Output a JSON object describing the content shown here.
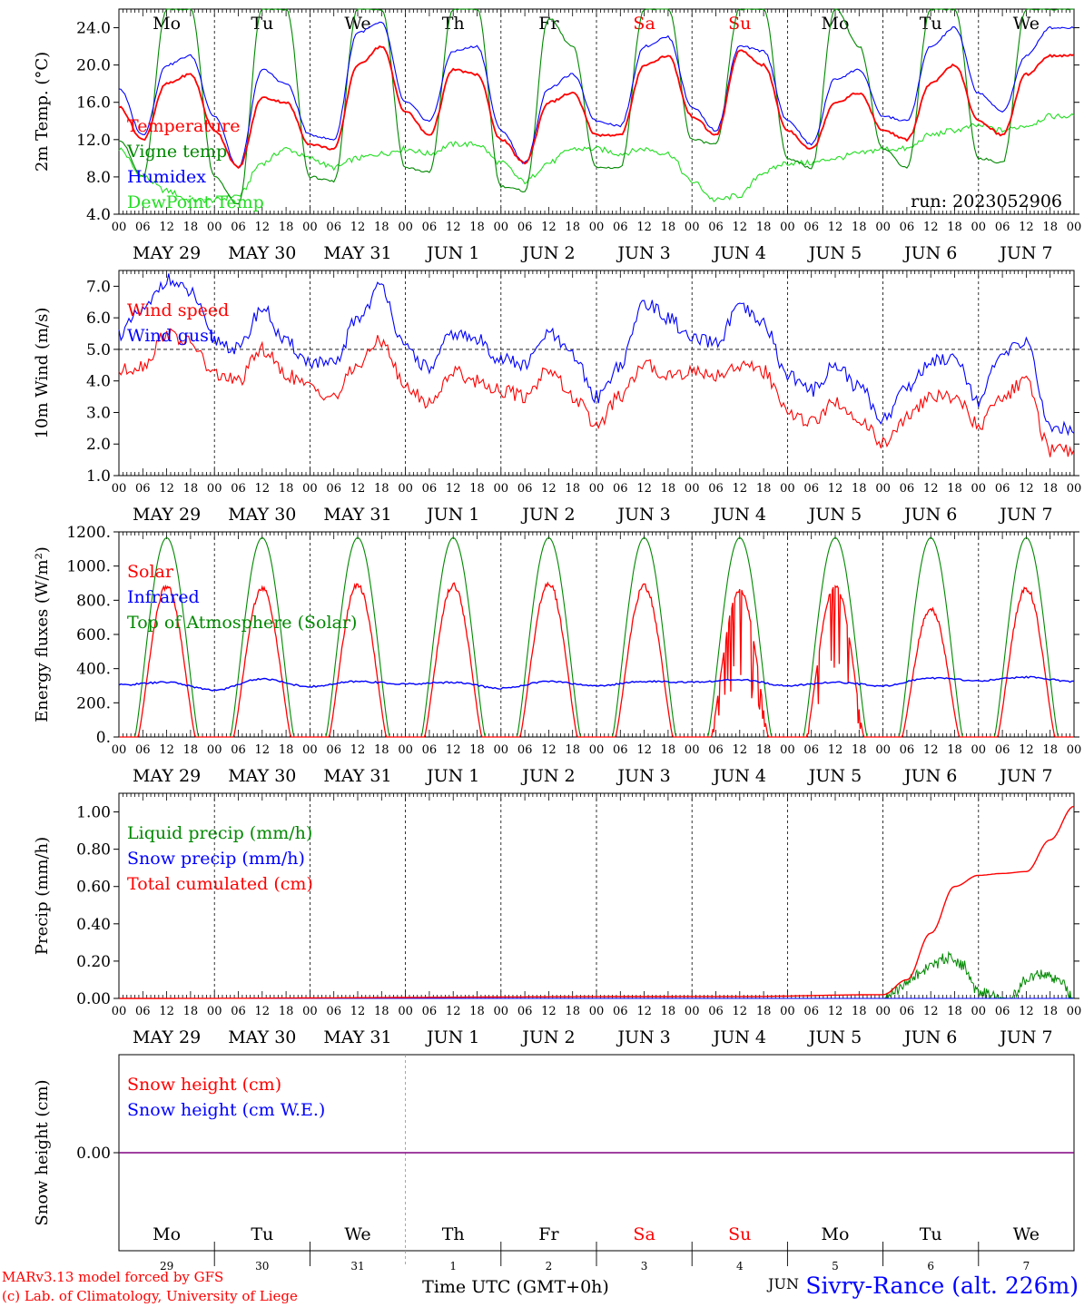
{
  "run_label": "run: 2023052906",
  "station": "Sivry-Rance (alt. 226m)",
  "credit_line1": "MARv3.13 model forced by GFS",
  "credit_line2": "(c) Lab. of Climatology, University of Liege",
  "time_axis_label": "Time UTC (GMT+0h)",
  "month_label": "JUN",
  "hour_ticks": [
    "00",
    "06",
    "12",
    "18"
  ],
  "final_hour_tick": "00",
  "date_labels": [
    "MAY 29",
    "MAY 30",
    "MAY 31",
    "JUN  1",
    "JUN  2",
    "JUN  3",
    "JUN  4",
    "JUN  5",
    "JUN  6",
    "JUN  7"
  ],
  "day_names": [
    "Mo",
    "Tu",
    "We",
    "Th",
    "Fr",
    "Sa",
    "Su",
    "Mo",
    "Tu",
    "We"
  ],
  "weekend_days": [
    5,
    6
  ],
  "day_numbers": [
    "29",
    "30",
    "31",
    "1",
    "2",
    "3",
    "4",
    "5",
    "6",
    "7"
  ],
  "colors": {
    "red": "#ff0000",
    "green": "#008800",
    "blue": "#0000ff",
    "lightgreen": "#22dd22",
    "purple": "#800080"
  },
  "chart_data": [
    {
      "type": "line",
      "ylabel": "2m Temp. (°C)",
      "ylim": [
        4,
        26
      ],
      "y_ticks": [
        "4.0",
        "8.0",
        "12.0",
        "16.0",
        "20.0",
        "24.0"
      ],
      "legend": [
        "Temperature",
        "Vigne temp",
        "Humidex",
        "DewPoint Temp"
      ],
      "series": [
        {
          "name": "Temperature",
          "color": "red",
          "x_hours": [
            0,
            6,
            12,
            18,
            24,
            30,
            36,
            42,
            48,
            54,
            60,
            66,
            72,
            78,
            84,
            90,
            96,
            102,
            108,
            114,
            120,
            126,
            132,
            138,
            144,
            150,
            156,
            162,
            168,
            174,
            180,
            186,
            192,
            198,
            204,
            210,
            216,
            222,
            228,
            234
          ],
          "values": [
            15.5,
            12,
            18,
            19,
            13,
            9,
            16.5,
            16,
            11.5,
            11,
            20,
            22,
            15,
            12.5,
            19.5,
            19,
            12,
            9.5,
            16,
            17,
            12.5,
            12.5,
            20,
            21,
            14.5,
            12.5,
            21.5,
            20,
            13,
            11,
            16,
            17,
            13,
            12,
            18,
            20,
            14,
            12.5,
            19,
            21
          ]
        },
        {
          "name": "Vigne temp",
          "color": "green",
          "x_hours": [
            0,
            6,
            12,
            18,
            24,
            30,
            36,
            42,
            48,
            54,
            60,
            66,
            72,
            78,
            84,
            90,
            96,
            102,
            108,
            114,
            120,
            126,
            132,
            138,
            144,
            150,
            156,
            162,
            168,
            174,
            180,
            186,
            192,
            198,
            204,
            210,
            216,
            222,
            228,
            234
          ],
          "values": [
            12,
            8,
            26,
            26,
            8,
            5,
            26,
            26,
            8,
            7.5,
            26,
            26,
            9,
            8.5,
            26,
            26,
            7,
            6.5,
            25,
            22,
            9,
            9,
            26,
            26,
            12,
            11.5,
            26,
            26,
            10,
            9,
            26,
            22,
            11,
            9,
            26,
            26,
            10,
            9.5,
            26,
            26
          ]
        },
        {
          "name": "Humidex",
          "color": "blue",
          "x_hours": [
            0,
            6,
            12,
            18,
            24,
            30,
            36,
            42,
            48,
            54,
            60,
            66,
            72,
            78,
            84,
            90,
            96,
            102,
            108,
            114,
            120,
            126,
            132,
            138,
            144,
            150,
            156,
            162,
            168,
            174,
            180,
            186,
            192,
            198,
            204,
            210,
            216,
            222,
            228,
            234
          ],
          "values": [
            17.5,
            12.5,
            20,
            21,
            14.5,
            9,
            19.5,
            18,
            12.5,
            12,
            23.5,
            24.5,
            16,
            14,
            21.5,
            22,
            13,
            9.5,
            17.5,
            19,
            14,
            13.5,
            22,
            23,
            15.5,
            13,
            22,
            21.5,
            14,
            11.5,
            18.5,
            19.5,
            14.5,
            14,
            22,
            24,
            17,
            15,
            21,
            24
          ]
        },
        {
          "name": "DewPoint Temp",
          "color": "lightgreen",
          "x_hours": [
            0,
            6,
            12,
            18,
            24,
            30,
            36,
            42,
            48,
            54,
            60,
            66,
            72,
            78,
            84,
            90,
            96,
            102,
            108,
            114,
            120,
            126,
            132,
            138,
            144,
            150,
            156,
            162,
            168,
            174,
            180,
            186,
            192,
            198,
            204,
            210,
            216,
            222,
            228,
            234
          ],
          "values": [
            11,
            8,
            6.5,
            5.5,
            5.5,
            6,
            9.5,
            11,
            10,
            9,
            10,
            10.5,
            11,
            10.5,
            11.5,
            11.5,
            9.5,
            7.5,
            9.5,
            11,
            11,
            10.5,
            11,
            10.5,
            7.5,
            5.5,
            6,
            8.5,
            9.5,
            9.5,
            10,
            10.5,
            11,
            11,
            12.5,
            13,
            13.5,
            13,
            13.5,
            14.5
          ]
        }
      ]
    },
    {
      "type": "line",
      "ylabel": "10m Wind (m/s)",
      "ylim": [
        1,
        7.5
      ],
      "y_ticks": [
        "1.0",
        "2.0",
        "3.0",
        "4.0",
        "5.0",
        "6.0",
        "7.0"
      ],
      "ref_line": 5.0,
      "legend": [
        "Wind speed",
        "Wind gust"
      ],
      "series": [
        {
          "name": "Wind speed",
          "color": "red",
          "x_hours": [
            0,
            6,
            12,
            18,
            24,
            30,
            36,
            42,
            48,
            54,
            60,
            66,
            72,
            78,
            84,
            90,
            96,
            102,
            108,
            114,
            120,
            126,
            132,
            138,
            144,
            150,
            156,
            162,
            168,
            174,
            180,
            186,
            192,
            198,
            204,
            210,
            216,
            222,
            228,
            234
          ],
          "values": [
            4.3,
            4.5,
            5.5,
            5.2,
            4.2,
            4,
            5,
            4.2,
            3.8,
            3.5,
            4.5,
            5.3,
            3.8,
            3.3,
            4.3,
            4,
            3.7,
            3.5,
            4.4,
            3.5,
            2.6,
            3.5,
            4.5,
            4.2,
            4.3,
            4.2,
            4.5,
            4.3,
            3,
            2.7,
            3.3,
            2.8,
            2,
            2.8,
            3.5,
            3.5,
            2.6,
            3.5,
            4,
            1.8
          ]
        },
        {
          "name": "Wind gust",
          "color": "blue",
          "x_hours": [
            0,
            6,
            12,
            18,
            24,
            30,
            36,
            42,
            48,
            54,
            60,
            66,
            72,
            78,
            84,
            90,
            96,
            102,
            108,
            114,
            120,
            126,
            132,
            138,
            144,
            150,
            156,
            162,
            168,
            174,
            180,
            186,
            192,
            198,
            204,
            210,
            216,
            222,
            228,
            234
          ],
          "values": [
            5.5,
            6.2,
            7.2,
            6.8,
            5.3,
            5,
            6.3,
            5.2,
            4.6,
            4.5,
            6,
            7,
            5,
            4.4,
            5.5,
            5.3,
            4.7,
            4.5,
            5.5,
            4.8,
            3.5,
            4.5,
            6.5,
            6,
            5.3,
            5.2,
            6.3,
            5.8,
            4.2,
            3.7,
            4.5,
            3.8,
            2.8,
            3.8,
            4.6,
            4.8,
            3.4,
            4.8,
            5.3,
            2.5
          ]
        }
      ]
    },
    {
      "type": "line",
      "ylabel": "Energy fluxes (W/m²)",
      "ylim": [
        0,
        1200
      ],
      "y_ticks": [
        "0.",
        "200.",
        "400.",
        "600.",
        "800.",
        "1000.",
        "1200."
      ],
      "legend": [
        "Solar",
        "Infrared",
        "Top of Atmosphere (Solar)"
      ],
      "daily_peaks": {
        "Top of Atmosphere (Solar)": [
          1165,
          1165,
          1165,
          1165,
          1165,
          1165,
          1165,
          1165,
          1165,
          1165
        ],
        "Solar": [
          880,
          870,
          890,
          890,
          900,
          880,
          850,
          880,
          750,
          870
        ]
      },
      "series": [
        {
          "name": "Infrared",
          "color": "blue",
          "x_hours": [
            0,
            12,
            24,
            36,
            48,
            60,
            72,
            84,
            96,
            108,
            120,
            132,
            144,
            156,
            168,
            180,
            192,
            204,
            216,
            228,
            240
          ],
          "values": [
            305,
            320,
            275,
            340,
            295,
            325,
            310,
            320,
            285,
            325,
            300,
            325,
            320,
            335,
            300,
            320,
            300,
            345,
            330,
            350,
            325
          ]
        }
      ]
    },
    {
      "type": "line",
      "ylabel": "Precip (mm/h)",
      "ylim": [
        0,
        1.1
      ],
      "y_ticks": [
        "0.00",
        "0.20",
        "0.40",
        "0.60",
        "0.80",
        "1.00"
      ],
      "legend": [
        "Liquid precip (mm/h)",
        "Snow precip (mm/h)",
        "Total cumulated (cm)"
      ],
      "series": [
        {
          "name": "Total cumulated (cm)",
          "color": "red",
          "x_hours": [
            0,
            144,
            156,
            192,
            198,
            204,
            210,
            216,
            222,
            228,
            234,
            240
          ],
          "values": [
            0,
            0.01,
            0.01,
            0.02,
            0.1,
            0.35,
            0.6,
            0.66,
            0.67,
            0.68,
            0.85,
            1.03
          ]
        },
        {
          "name": "Liquid precip (mm/h)",
          "color": "green",
          "x_hours": [
            0,
            144,
            192,
            196,
            200,
            204,
            208,
            212,
            216,
            224,
            228,
            232,
            236,
            240
          ],
          "values": [
            0,
            0,
            0,
            0.05,
            0.12,
            0.17,
            0.22,
            0.18,
            0.03,
            0,
            0.1,
            0.13,
            0.1,
            0
          ]
        }
      ]
    },
    {
      "type": "line",
      "ylabel": "Snow height (cm)",
      "y_ticks": [
        "0.00"
      ],
      "legend": [
        "Snow height (cm)",
        "Snow height (cm W.E.)"
      ],
      "series": [
        {
          "name": "Snow height (cm)",
          "color": "red",
          "x_hours": [
            0,
            240
          ],
          "values": [
            0,
            0
          ]
        },
        {
          "name": "Snow height (cm W.E.)",
          "color": "blue",
          "x_hours": [
            0,
            240
          ],
          "values": [
            0,
            0
          ]
        }
      ]
    }
  ]
}
